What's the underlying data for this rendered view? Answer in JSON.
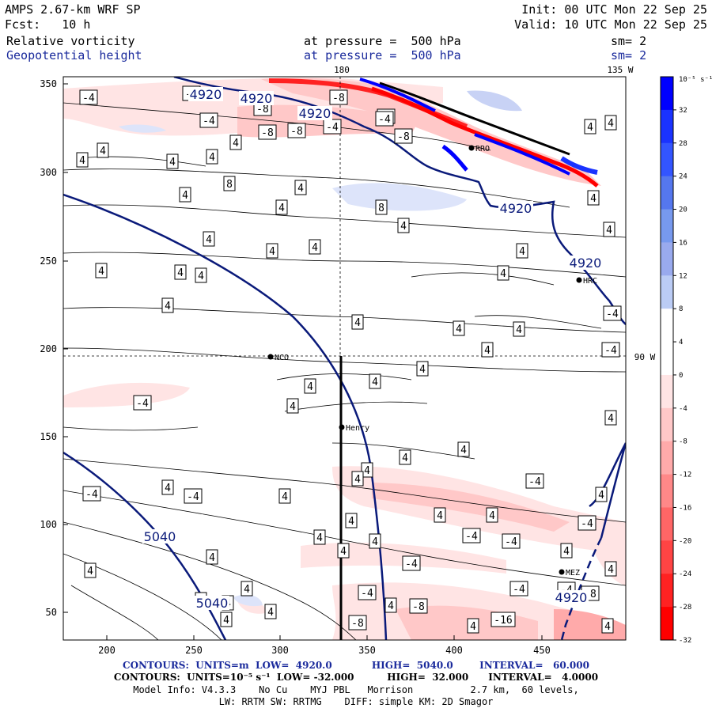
{
  "header": {
    "model_title": "AMPS 2.67-km WRF SP",
    "forecast": "Fcst:   10 h",
    "init": "Init: 00 UTC Mon 22 Sep 25",
    "valid": "Valid: 10 UTC Mon 22 Sep 25",
    "field1_name": "Relative vorticity",
    "field1_level": "at pressure =  500 hPa",
    "field1_sm": "sm= 2",
    "field2_name": "Geopotential height",
    "field2_level": "at pressure =  500 hPa",
    "field2_sm": "sm= 2"
  },
  "map": {
    "x_ticks": [
      "200",
      "250",
      "300",
      "350",
      "400",
      "450"
    ],
    "y_ticks": [
      "350",
      "300",
      "250",
      "200",
      "150",
      "100",
      "50"
    ],
    "meridian_180": "180",
    "meridian_135w": "135 W",
    "meridian_90w": "90 W",
    "stations": [
      {
        "name": "NCO"
      },
      {
        "name": "Henry"
      },
      {
        "name": "HRC"
      },
      {
        "name": "MEZ"
      },
      {
        "name": "RRO"
      }
    ],
    "height_labels": [
      "4920",
      "4920",
      "4920",
      "4920",
      "4920",
      "5040",
      "5040",
      "4920"
    ],
    "vorticity_labels": [
      "-4",
      "-4",
      "-8",
      "-8",
      "-4",
      "-8",
      "-8",
      "-8",
      "-4",
      "-8",
      "-4",
      "4",
      "4",
      "4",
      "4",
      "4",
      "8",
      "4",
      "4",
      "8",
      "4",
      "4",
      "4",
      "4",
      "4",
      "4",
      "4",
      "4",
      "4",
      "4",
      "4",
      "4",
      "4",
      "4",
      "4",
      "4",
      "4",
      "4",
      "4",
      "4",
      "-4",
      "4",
      "4",
      "-4",
      "4",
      "4",
      "4",
      "4",
      "4",
      "-4",
      "4",
      "-4",
      "-4",
      "4",
      "4",
      "4",
      "4",
      "4",
      "4",
      "-4",
      "-4",
      "4",
      "4",
      "4",
      "-4",
      "4",
      "-4",
      "4",
      "4",
      "-4",
      "4",
      "4",
      "4",
      "-8",
      "-8",
      "-4",
      "-4",
      "-16",
      "4",
      "4",
      "4",
      "-8",
      "4",
      "4",
      "4",
      "-4"
    ]
  },
  "colorbar": {
    "units": "10⁻⁵ s⁻¹",
    "labels": [
      "32",
      "28",
      "24",
      "20",
      "16",
      "12",
      "8",
      "4",
      "0",
      "-4",
      "-8",
      "-12",
      "-16",
      "-20",
      "-24",
      "-28",
      "-32"
    ],
    "colors": [
      "#0000ff",
      "#1a33ff",
      "#3355ff",
      "#5577ee",
      "#7799ee",
      "#99aaee",
      "#bbccf5",
      "#ffffff",
      "#ffffff",
      "#ffe4e4",
      "#ffc8c8",
      "#ffaaaa",
      "#ff8888",
      "#ff6666",
      "#ff4444",
      "#ff2222",
      "#ff0000"
    ]
  },
  "footer": {
    "line1": "CONTOURS:  UNITS=m  LOW=  4920.0            HIGH=  5040.0        INTERVAL=   60.000",
    "line2": "CONTOURS:  UNITS=10⁻⁵ s⁻¹  LOW= -32.000          HIGH=  32.000      INTERVAL=   4.0000",
    "line3": "Model Info: V4.3.3    No Cu    MYJ PBL   Morrison          2.7 km,  60 levels,",
    "line4": "LW: RRTM SW: RRTMG    DIFF: simple KM: 2D Smagor"
  },
  "colors": {
    "height_contour": "#0a1a7a",
    "vort_pos": "#0000ff",
    "vort_neg": "#ff0000"
  }
}
